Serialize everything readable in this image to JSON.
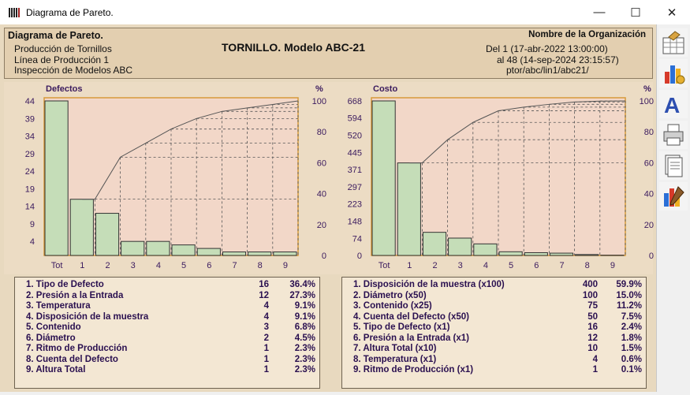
{
  "window": {
    "title": "Diagrama de Pareto.",
    "minimize": "—",
    "maximize": "☐",
    "close": "✕"
  },
  "header": {
    "title": "Diagrama de Pareto.",
    "line1": "Producción de Tornillos",
    "line2": "Línea de Producción 1",
    "line3": "Inspección de Modelos ABC",
    "product": "TORNILLO. Modelo ABC-21",
    "organization": "Nombre de la Organización",
    "range_from": "Del 1 (17-abr-2022  13:00:00)",
    "range_to": "al 48 (14-sep-2024  23:15:57)",
    "path": "ptor/abc/lin1/abc21/"
  },
  "chart_data": [
    {
      "type": "bar",
      "title": "Defectos",
      "pct_label": "%",
      "categories": [
        "Tot",
        "1",
        "2",
        "3",
        "4",
        "5",
        "6",
        "7",
        "8",
        "9"
      ],
      "values": [
        44,
        16,
        12,
        4,
        4,
        3,
        2,
        1,
        1,
        1
      ],
      "cumulative_pct": [
        null,
        36.4,
        63.6,
        72.7,
        81.8,
        88.6,
        93.2,
        95.5,
        97.7,
        100
      ],
      "y_ticks": [
        4,
        9,
        14,
        19,
        24,
        29,
        34,
        39,
        44
      ],
      "ylim": [
        0,
        44
      ],
      "pct_ticks": [
        0,
        20,
        40,
        60,
        80,
        100
      ],
      "grid": true
    },
    {
      "type": "bar",
      "title": "Costo",
      "pct_label": "%",
      "categories": [
        "Tot",
        "1",
        "2",
        "3",
        "4",
        "5",
        "6",
        "7",
        "8",
        "9"
      ],
      "values": [
        668,
        400,
        100,
        75,
        50,
        16,
        12,
        10,
        4,
        1
      ],
      "cumulative_pct": [
        null,
        59.9,
        74.9,
        86.1,
        93.6,
        96.0,
        97.8,
        99.3,
        99.9,
        100
      ],
      "y_ticks": [
        0,
        74,
        148,
        223,
        297,
        371,
        445,
        520,
        594,
        668
      ],
      "ylim": [
        0,
        668
      ],
      "pct_ticks": [
        0,
        20,
        40,
        60,
        80,
        100
      ],
      "grid": true
    }
  ],
  "legend_left": [
    {
      "label": "1.  Tipo de Defecto",
      "value": "16",
      "pct": "36.4%"
    },
    {
      "label": "2.  Presión a la Entrada",
      "value": "12",
      "pct": "27.3%"
    },
    {
      "label": "3.  Temperatura",
      "value": "4",
      "pct": "9.1%"
    },
    {
      "label": "4.  Disposición de la muestra",
      "value": "4",
      "pct": "9.1%"
    },
    {
      "label": "5.  Contenido",
      "value": "3",
      "pct": "6.8%"
    },
    {
      "label": "6.  Diámetro",
      "value": "2",
      "pct": "4.5%"
    },
    {
      "label": "7.  Ritmo de Producción",
      "value": "1",
      "pct": "2.3%"
    },
    {
      "label": "8.  Cuenta del Defecto",
      "value": "1",
      "pct": "2.3%"
    },
    {
      "label": "9.  Altura Total",
      "value": "1",
      "pct": "2.3%"
    }
  ],
  "legend_right": [
    {
      "label": "1.  Disposición de la muestra (x100)",
      "value": "400",
      "pct": "59.9%"
    },
    {
      "label": "2.  Diámetro (x50)",
      "value": "100",
      "pct": "15.0%"
    },
    {
      "label": "3.  Contenido (x25)",
      "value": "75",
      "pct": "11.2%"
    },
    {
      "label": "4.  Cuenta del Defecto (x50)",
      "value": "50",
      "pct": "7.5%"
    },
    {
      "label": "5.  Tipo de Defecto (x1)",
      "value": "16",
      "pct": "2.4%"
    },
    {
      "label": "6.  Presión a la Entrada (x1)",
      "value": "12",
      "pct": "1.8%"
    },
    {
      "label": "7.  Altura Total (x10)",
      "value": "10",
      "pct": "1.5%"
    },
    {
      "label": "8.  Temperatura (x1)",
      "value": "4",
      "pct": "0.6%"
    },
    {
      "label": "9.  Ritmo de Producción (x1)",
      "value": "1",
      "pct": "0.1%"
    }
  ],
  "toolbar": [
    "edit-table-icon",
    "chart-options-icon",
    "font-icon",
    "print-icon",
    "page-icon",
    "chart-style-icon"
  ],
  "colors": {
    "bar": "#c5ddb8",
    "plot_bg": "#f2d7c8",
    "text": "#3a1a5e",
    "frame": "#e8d9bf"
  }
}
